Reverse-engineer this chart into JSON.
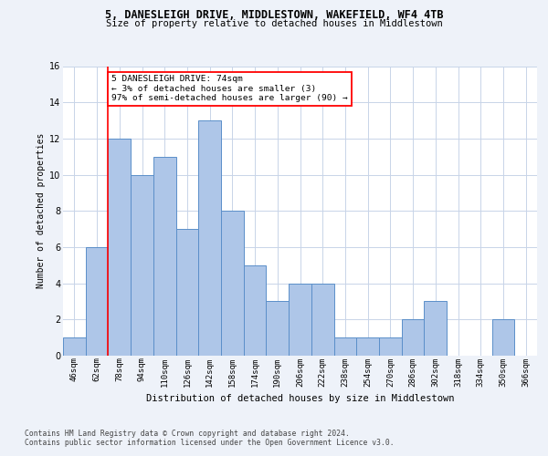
{
  "title_line1": "5, DANESLEIGH DRIVE, MIDDLESTOWN, WAKEFIELD, WF4 4TB",
  "title_line2": "Size of property relative to detached houses in Middlestown",
  "xlabel": "Distribution of detached houses by size in Middlestown",
  "ylabel": "Number of detached properties",
  "categories": [
    "46sqm",
    "62sqm",
    "78sqm",
    "94sqm",
    "110sqm",
    "126sqm",
    "142sqm",
    "158sqm",
    "174sqm",
    "190sqm",
    "206sqm",
    "222sqm",
    "238sqm",
    "254sqm",
    "270sqm",
    "286sqm",
    "302sqm",
    "318sqm",
    "334sqm",
    "350sqm",
    "366sqm"
  ],
  "values": [
    1,
    6,
    12,
    10,
    11,
    7,
    13,
    8,
    5,
    3,
    4,
    4,
    1,
    1,
    1,
    2,
    3,
    0,
    0,
    2,
    0
  ],
  "bar_color": "#aec6e8",
  "bar_edge_color": "#5b8fc9",
  "annotation_text": "5 DANESLEIGH DRIVE: 74sqm\n← 3% of detached houses are smaller (3)\n97% of semi-detached houses are larger (90) →",
  "annotation_box_color": "white",
  "annotation_box_edge_color": "red",
  "vline_color": "red",
  "ylim": [
    0,
    16
  ],
  "yticks": [
    0,
    2,
    4,
    6,
    8,
    10,
    12,
    14,
    16
  ],
  "footer_line1": "Contains HM Land Registry data © Crown copyright and database right 2024.",
  "footer_line2": "Contains public sector information licensed under the Open Government Licence v3.0.",
  "background_color": "#eef2f9",
  "plot_background": "white",
  "grid_color": "#c8d4e8"
}
